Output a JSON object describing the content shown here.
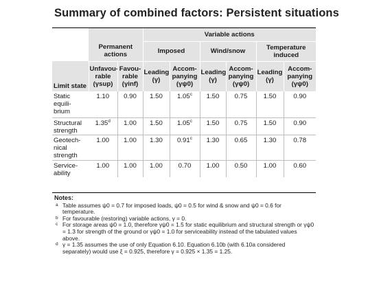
{
  "title": "Summary of combined factors: Persistent situations",
  "headers": {
    "variable_actions": "Variable actions",
    "permanent_actions": "Permanent actions",
    "imposed": "Imposed",
    "wind_snow": "Wind/snow",
    "temperature_induced": "Temperature induced",
    "limit_state": "Limit state",
    "unfavourable": "Unfavou- rable",
    "unfavourable_sym": "(γsup)",
    "favourable": "Favou- rable",
    "favourable_sym": "(γinf)",
    "leading": "Leading",
    "leading_sym": "(γ)",
    "accompanying": "Accom- panying",
    "accompanying_sym": "(γψ0)"
  },
  "rows": [
    {
      "label": "Static equili- brium",
      "values": [
        "1.10",
        "0.90",
        "1.50",
        "1.05",
        "1.50",
        "0.75",
        "1.50",
        "0.90"
      ],
      "sup": [
        "",
        "",
        "",
        "c",
        "",
        "",
        "",
        ""
      ]
    },
    {
      "label": "Structural strength",
      "values": [
        "1.35",
        "1.00",
        "1.50",
        "1.05",
        "1.50",
        "0.75",
        "1.50",
        "0.90"
      ],
      "sup": [
        "d",
        "",
        "",
        "c",
        "",
        "",
        "",
        ""
      ]
    },
    {
      "label": "Geotech- nical strength",
      "values": [
        "1.00",
        "1.00",
        "1.30",
        "0.91",
        "1.30",
        "0.65",
        "1.30",
        "0.78"
      ],
      "sup": [
        "",
        "",
        "",
        "c",
        "",
        "",
        "",
        ""
      ]
    },
    {
      "label": "Service- ability",
      "values": [
        "1.00",
        "1.00",
        "1.00",
        "0.70",
        "1.00",
        "0.50",
        "1.00",
        "0.60"
      ],
      "sup": [
        "",
        "",
        "",
        "",
        "",
        "",
        "",
        ""
      ]
    }
  ],
  "notes": {
    "title": "Notes:",
    "items": [
      {
        "mark": "a",
        "text": "Table assumes ψ0 = 0.7 for imposed loads, ψ0 = 0.5 for wind & snow and ψ0 = 0.6 for temperature."
      },
      {
        "mark": "b",
        "text": "For favourable (restoring) variable actions, γ = 0."
      },
      {
        "mark": "c",
        "text": "For storage areas ψ0 = 1.0, therefore γψ0 = 1.5 for static equilibrium and structural strength or γψ0 = 1.3 for strength of the ground or γψ0 = 1.0 for serviceability instead of the tabulated values above."
      },
      {
        "mark": "d",
        "text": "γ = 1.35 assumes the use of only Equation 6.10. Equation 6.10b (with 6.10a considered separately) would use ξ = 0.925, therefore γ = 0.925 × 1.35 = 1.25."
      }
    ]
  }
}
